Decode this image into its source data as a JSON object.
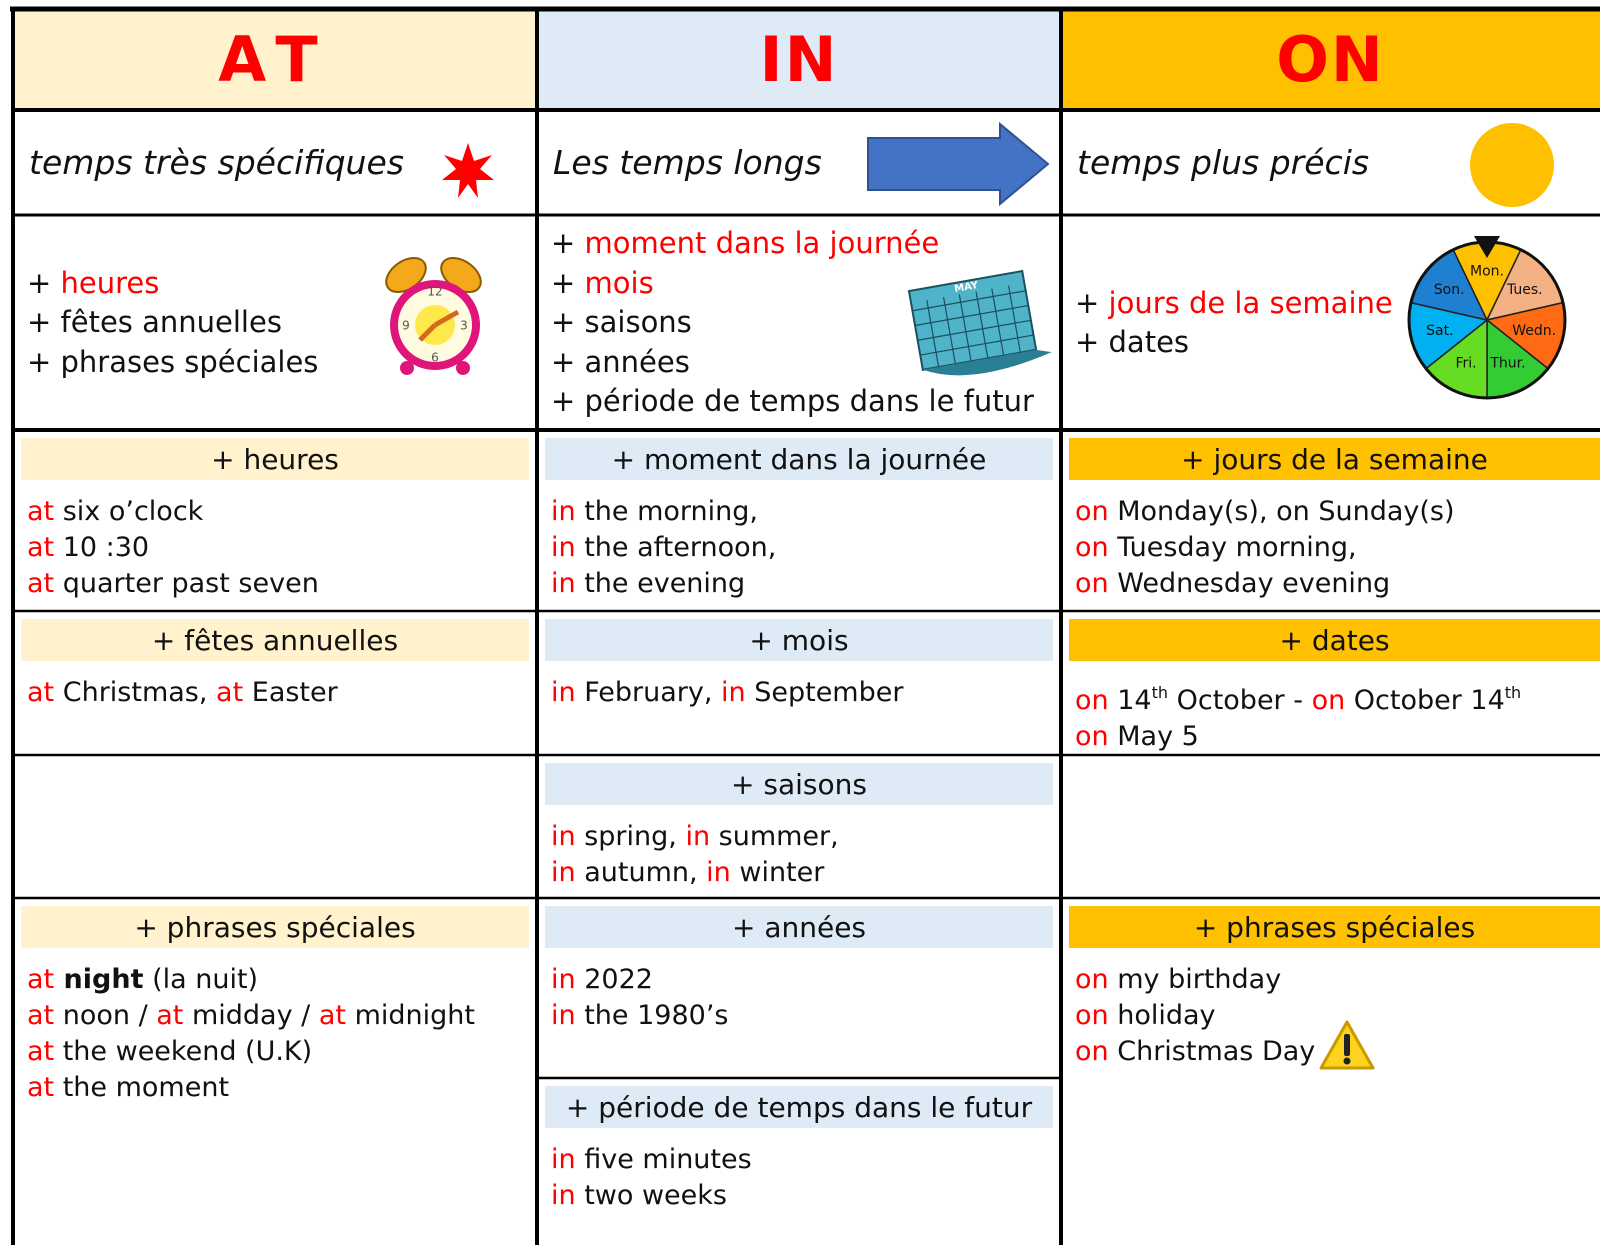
{
  "columns": [
    {
      "header": "AT",
      "color": "#fff2cc",
      "description": "temps très spécifiques",
      "items": [
        [
          {
            "text": "+ "
          },
          {
            "text": "heures",
            "style": "prep"
          }
        ],
        [
          {
            "text": "+ fêtes annuelles"
          }
        ],
        [
          {
            "text": "+ phrases spéciales"
          }
        ]
      ],
      "sections": [
        {
          "title": "+ heures",
          "lines": [
            [
              {
                "text": "at",
                "style": "prep"
              },
              {
                "text": " six o’clock"
              }
            ],
            [
              {
                "text": "at",
                "style": "prep"
              },
              {
                "text": " 10 :30"
              }
            ],
            [
              {
                "text": "at",
                "style": "prep"
              },
              {
                "text": " quarter past seven"
              }
            ]
          ]
        },
        {
          "title": "+ fêtes annuelles",
          "lines": [
            [
              {
                "text": "at",
                "style": "prep"
              },
              {
                "text": " Christmas, "
              },
              {
                "text": "at",
                "style": "prep"
              },
              {
                "text": " Easter"
              }
            ]
          ]
        },
        {
          "title": "+ phrases spéciales",
          "lines": [
            [
              {
                "text": "at",
                "style": "prep"
              },
              {
                "text": " night",
                "style": "bold"
              },
              {
                "text": " (la nuit)"
              }
            ],
            [
              {
                "text": "at",
                "style": "prep"
              },
              {
                "text": " noon / "
              },
              {
                "text": "at",
                "style": "prep"
              },
              {
                "text": " midday / "
              },
              {
                "text": "at",
                "style": "prep"
              },
              {
                "text": " midnight"
              }
            ],
            [
              {
                "text": "at",
                "style": "prep"
              },
              {
                "text": " the weekend (U.K)"
              }
            ],
            [
              {
                "text": "at",
                "style": "prep"
              },
              {
                "text": " the moment"
              }
            ]
          ]
        }
      ]
    },
    {
      "header": "IN",
      "color": "#deebf7",
      "description": "Les temps longs",
      "items": [
        [
          {
            "text": "+ "
          },
          {
            "text": "moment dans la journée",
            "style": "prep"
          }
        ],
        [
          {
            "text": "+ "
          },
          {
            "text": "mois",
            "style": "prep"
          }
        ],
        [
          {
            "text": "+ saisons"
          }
        ],
        [
          {
            "text": "+ années"
          }
        ],
        [
          {
            "text": "+ période de temps dans le futur"
          }
        ]
      ],
      "sections": [
        {
          "title": "+ moment dans la journée",
          "lines": [
            [
              {
                "text": "in",
                "style": "prep"
              },
              {
                "text": " the morning,"
              }
            ],
            [
              {
                "text": "in",
                "style": "prep"
              },
              {
                "text": " the afternoon,"
              }
            ],
            [
              {
                "text": "in",
                "style": "prep"
              },
              {
                "text": " the evening"
              }
            ]
          ]
        },
        {
          "title": "+ mois",
          "lines": [
            [
              {
                "text": "in",
                "style": "prep"
              },
              {
                "text": " February, "
              },
              {
                "text": "in",
                "style": "prep"
              },
              {
                "text": " September"
              }
            ]
          ]
        },
        {
          "title": "+ saisons",
          "lines": [
            [
              {
                "text": "in",
                "style": "prep"
              },
              {
                "text": " spring, "
              },
              {
                "text": "in",
                "style": "prep"
              },
              {
                "text": " summer,"
              }
            ],
            [
              {
                "text": "in",
                "style": "prep"
              },
              {
                "text": " autumn, "
              },
              {
                "text": "in",
                "style": "prep"
              },
              {
                "text": " winter"
              }
            ]
          ]
        },
        {
          "title": "+ années",
          "lines": [
            [
              {
                "text": "in",
                "style": "prep"
              },
              {
                "text": " 2022"
              }
            ],
            [
              {
                "text": "in",
                "style": "prep"
              },
              {
                "text": " the 1980’s"
              }
            ]
          ]
        },
        {
          "title": "+ période de temps dans le futur",
          "lines": [
            [
              {
                "text": "in",
                "style": "prep"
              },
              {
                "text": " five minutes"
              }
            ],
            [
              {
                "text": "in",
                "style": "prep"
              },
              {
                "text": " two weeks"
              }
            ]
          ]
        }
      ]
    },
    {
      "header": "ON",
      "color": "#ffc000",
      "description": "temps plus précis",
      "items": [
        [
          {
            "text": "+ "
          },
          {
            "text": "jours de la semaine",
            "style": "prep"
          }
        ],
        [
          {
            "text": "+ dates"
          }
        ]
      ],
      "sections": [
        {
          "title": "+ jours de la semaine",
          "lines": [
            [
              {
                "text": "on",
                "style": "prep"
              },
              {
                "text": " Monday(s), on Sunday(s)"
              }
            ],
            [
              {
                "text": "on",
                "style": "prep"
              },
              {
                "text": " Tuesday morning,"
              }
            ],
            [
              {
                "text": "on",
                "style": "prep"
              },
              {
                "text": " Wednesday evening"
              }
            ]
          ]
        },
        {
          "title": "+ dates",
          "lines": [
            [
              {
                "text": "on",
                "style": "prep"
              },
              {
                "text": " 14"
              },
              {
                "text": "th",
                "style": "sup"
              },
              {
                "text": " October - "
              },
              {
                "text": "on",
                "style": "prep"
              },
              {
                "text": " October 14"
              },
              {
                "text": "th",
                "style": "sup"
              }
            ],
            [
              {
                "text": "on",
                "style": "prep"
              },
              {
                "text": " May 5"
              }
            ]
          ]
        },
        {
          "title": "+ phrases spéciales",
          "lines": [
            [
              {
                "text": "on",
                "style": "prep"
              },
              {
                "text": " my birthday"
              }
            ],
            [
              {
                "text": "on",
                "style": "prep"
              },
              {
                "text": " holiday"
              }
            ],
            [
              {
                "text": "on",
                "style": "prep"
              },
              {
                "text": " Christmas Day"
              }
            ]
          ]
        }
      ]
    }
  ],
  "wheel_days": [
    "Mon.",
    "Tues.",
    "Wedn.",
    "Thur.",
    "Fri.",
    "Sat.",
    "Son."
  ],
  "calendar_month": "MAY",
  "clock_numbers": [
    "12",
    "3",
    "6",
    "9"
  ]
}
